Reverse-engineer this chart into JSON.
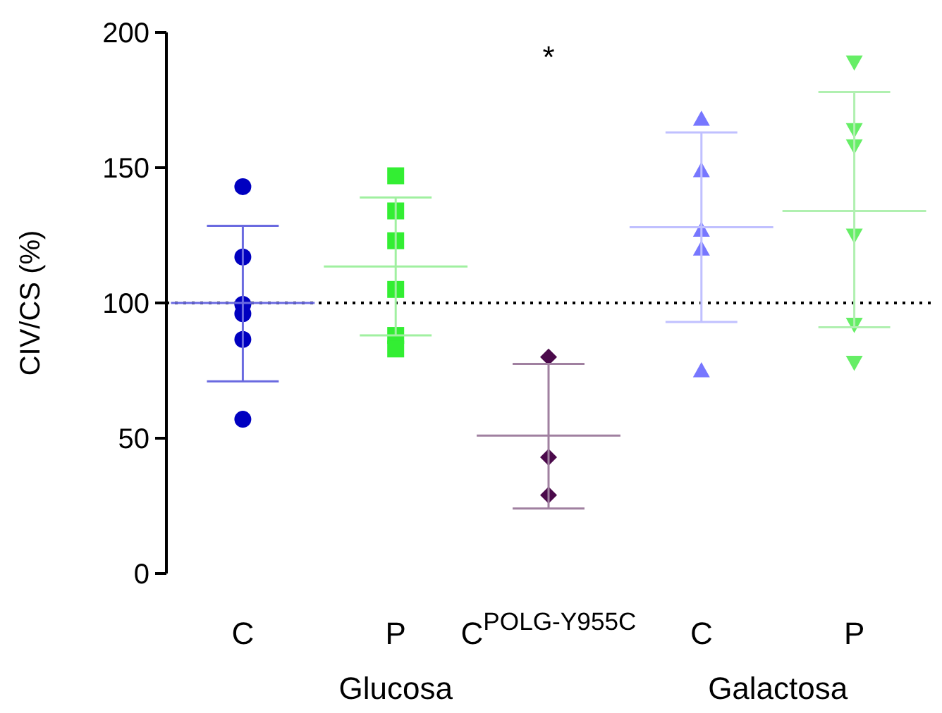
{
  "chart_data": {
    "type": "scatter",
    "ylabel": "CIV/CS (%)",
    "categories": [
      "C",
      "P",
      "C$^{POLG-Y955C}$",
      "C",
      "P"
    ],
    "ylim": [
      0,
      200
    ],
    "yticks": [
      0,
      50,
      100,
      150,
      200
    ],
    "grid": false,
    "series": [
      {
        "colors": [
          "#0000c0",
          "#33ee33",
          "#4b0a4b",
          "#7777ff",
          "#66ee66"
        ],
        "values": [
          143,
          147,
          80,
          168,
          189
        ]
      },
      {
        "colors": [
          "#0000c0",
          "#33ee33",
          "#4b0a4b",
          "#7777ff",
          "#66ee66"
        ],
        "values": [
          117,
          134,
          43,
          149,
          164
        ]
      },
      {
        "colors": [
          "#0000c0",
          "#33ee33",
          "#4b0a4b",
          "#7777ff",
          "#66ee66"
        ],
        "values": [
          99.5,
          123,
          29,
          127,
          158
        ]
      },
      {
        "colors": [
          "#0000c0",
          "#33ee33",
          null,
          "#7777ff",
          "#66ee66"
        ],
        "values": [
          96,
          105,
          null,
          120,
          125
        ]
      },
      {
        "colors": [
          "#0000c0",
          "#33ee33",
          null,
          "#7777ff",
          "#66ee66"
        ],
        "values": [
          86.5,
          88,
          null,
          75,
          92
        ]
      },
      {
        "colors": [
          "#0000c0",
          "#33ee33",
          null,
          null,
          "#66ee66"
        ],
        "values": [
          57,
          83,
          null,
          null,
          78
        ]
      },
      {
        "type": "box",
        "colors": [
          "#6a6ae0",
          "#a0f0a0",
          "#a080a0",
          "#c0c0ff",
          "#b0f0b0"
        ],
        "boxes": [
          {
            "low": 71,
            "q1": 100,
            "median": 100,
            "q3": 100,
            "high": 128.5
          },
          {
            "low": 88,
            "q1": 113.5,
            "median": 113.5,
            "q3": 113.5,
            "high": 139
          },
          {
            "low": 24,
            "q1": 51,
            "median": 51,
            "q3": 51,
            "high": 77.5
          },
          {
            "low": 93,
            "q1": 128,
            "median": 128,
            "q3": 128,
            "high": 163
          },
          {
            "low": 91,
            "q1": 134,
            "median": 134,
            "q3": 134,
            "high": 178
          }
        ]
      }
    ],
    "ref_lines": [
      {
        "axis": "y",
        "value": 100,
        "line_style": "dotted",
        "color": "#000000"
      }
    ],
    "annotations": [
      "*",
      "Glucosa",
      "Galactosa"
    ]
  }
}
